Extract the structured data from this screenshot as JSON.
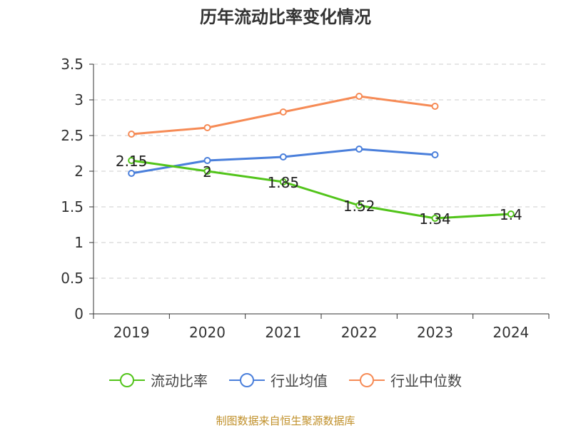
{
  "chart_data": {
    "type": "line",
    "title": "历年流动比率变化情况",
    "categories": [
      "2019",
      "2020",
      "2021",
      "2022",
      "2023",
      "2024"
    ],
    "y_ticks": [
      "0",
      "0.5",
      "1",
      "1.5",
      "2",
      "2.5",
      "3",
      "3.5"
    ],
    "ylim": [
      0,
      3.5
    ],
    "grid": true,
    "legend_position": "bottom",
    "series": [
      {
        "name": "流动比率",
        "color": "#52c41a",
        "values": [
          2.15,
          2.0,
          1.85,
          1.52,
          1.34,
          1.4
        ],
        "labels": [
          "2.15",
          "2",
          "1.85",
          "1.52",
          "1.34",
          "1.4"
        ]
      },
      {
        "name": "行业均值",
        "color": "#4a7fdb",
        "values": [
          1.97,
          2.15,
          2.2,
          2.31,
          2.23,
          null
        ]
      },
      {
        "name": "行业中位数",
        "color": "#f68b56",
        "values": [
          2.52,
          2.61,
          2.83,
          3.05,
          2.91,
          null
        ]
      }
    ],
    "source": "制图数据来自恒生聚源数据库"
  }
}
